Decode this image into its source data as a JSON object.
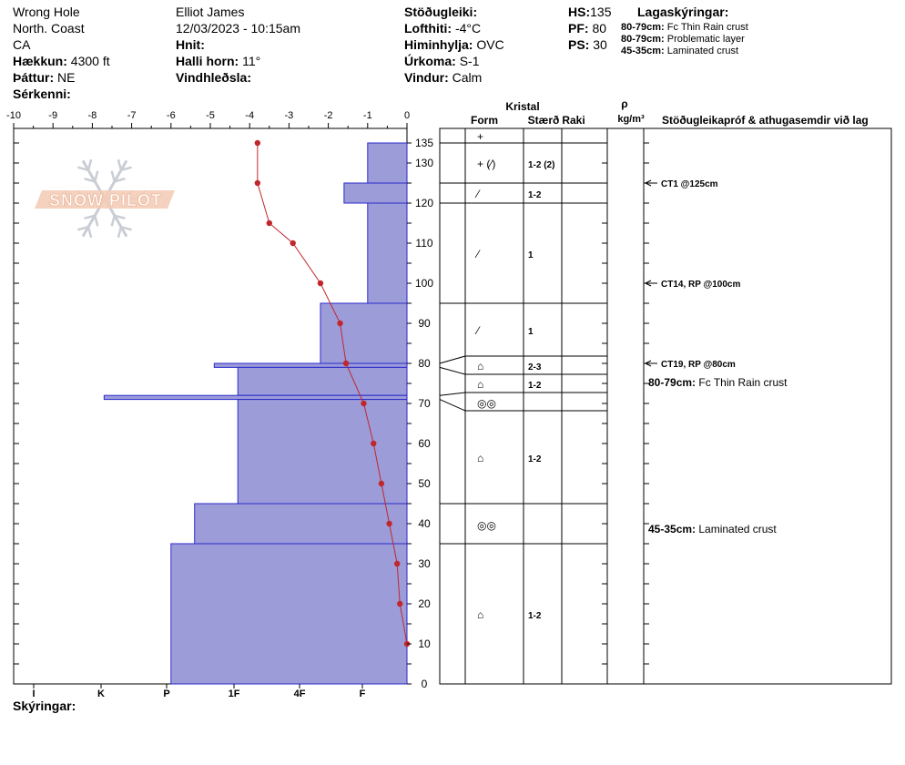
{
  "header": {
    "col1": [
      "Wrong Hole",
      "North. Coast",
      "CA"
    ],
    "elevation": {
      "label": "Hækkun:",
      "value": "4300 ft"
    },
    "aspect": {
      "label": "Þáttur:",
      "value": "NE"
    },
    "features": {
      "label": "Sérkenni:",
      "value": ""
    },
    "observer": "Elliot James",
    "datetime": "12/03/2023 - 10:15am",
    "coords": {
      "label": "Hnit:",
      "value": ""
    },
    "slope": {
      "label": "Halli horn:",
      "value": "11°"
    },
    "wind_loading": {
      "label": "Vindhleðsla:",
      "value": ""
    },
    "stability": {
      "label": "Stöðugleiki:",
      "value": ""
    },
    "air_temp": {
      "label": "Lofthiti:",
      "value": "-4°C"
    },
    "sky": {
      "label": "Himinhylja:",
      "value": "OVC"
    },
    "precip": {
      "label": "Úrkoma:",
      "value": "S-1"
    },
    "wind": {
      "label": "Vindur:",
      "value": "Calm"
    },
    "hs": {
      "label": "HS:",
      "value": "135"
    },
    "pf": {
      "label": "PF:",
      "value": "80"
    },
    "ps": {
      "label": "PS:",
      "value": "30"
    },
    "legend_title": "Lagaskýringar:",
    "legend_items": [
      {
        "range": "80-79cm:",
        "text": "Fc Thin Rain crust"
      },
      {
        "range": "80-79cm:",
        "text": "Problematic layer"
      },
      {
        "range": "45-35cm:",
        "text": "Laminated crust"
      }
    ],
    "notes_label": "Skýringar:"
  },
  "chart_data": {
    "type": "snow-profile",
    "temperature_axis": {
      "ticks": [
        -10,
        -9,
        -8,
        -7,
        -6,
        -5,
        -4,
        -3,
        -2,
        -1,
        0
      ],
      "range": [
        -10,
        0
      ]
    },
    "depth_axis": {
      "range": [
        0,
        135
      ],
      "labels": [
        0,
        10,
        20,
        30,
        40,
        50,
        60,
        70,
        80,
        90,
        100,
        110,
        120,
        130,
        135
      ]
    },
    "hardness_axis": {
      "labels": [
        "I",
        "K",
        "P",
        "1F",
        "4F",
        "F"
      ]
    },
    "temperature_profile": [
      {
        "depth": 135,
        "temp": -3.8
      },
      {
        "depth": 125,
        "temp": -3.8
      },
      {
        "depth": 115,
        "temp": -3.5
      },
      {
        "depth": 110,
        "temp": -2.9
      },
      {
        "depth": 100,
        "temp": -2.2
      },
      {
        "depth": 90,
        "temp": -1.7
      },
      {
        "depth": 80,
        "temp": -1.55
      },
      {
        "depth": 70,
        "temp": -1.1
      },
      {
        "depth": 60,
        "temp": -0.85
      },
      {
        "depth": 50,
        "temp": -0.65
      },
      {
        "depth": 40,
        "temp": -0.45
      },
      {
        "depth": 30,
        "temp": -0.25
      },
      {
        "depth": 20,
        "temp": -0.18
      },
      {
        "depth": 10,
        "temp": 0
      }
    ],
    "hardness_layers": [
      {
        "top": 135,
        "bottom": 125,
        "hardness": -1.0
      },
      {
        "top": 125,
        "bottom": 120,
        "hardness": -1.6
      },
      {
        "top": 120,
        "bottom": 95,
        "hardness": -1.0
      },
      {
        "top": 95,
        "bottom": 80,
        "hardness": -2.2
      },
      {
        "top": 80,
        "bottom": 79,
        "hardness": -4.9
      },
      {
        "top": 79,
        "bottom": 72,
        "hardness": -4.3
      },
      {
        "top": 72,
        "bottom": 71,
        "hardness": -7.7
      },
      {
        "top": 71,
        "bottom": 45,
        "hardness": -4.3
      },
      {
        "top": 45,
        "bottom": 35,
        "hardness": -5.4
      },
      {
        "top": 35,
        "bottom": 0,
        "hardness": -6.0
      }
    ],
    "crystal_header": {
      "kristal": "Kristal",
      "form": "Form",
      "size": "Stærð",
      "moisture": "Raki",
      "rho": "ρ",
      "density_unit": "kg/m³",
      "tests": "Stöðugleikapróf & athugasemdir við lag"
    },
    "layers": [
      {
        "top": 135,
        "bottom": 125,
        "form": "+",
        "size": ""
      },
      {
        "top": 135,
        "bottom": 125,
        "form": "+ (⁄)",
        "size": "1-2 (2)"
      },
      {
        "top": 125,
        "bottom": 120,
        "form": "⁄",
        "size": "1-2"
      },
      {
        "top": 120,
        "bottom": 95,
        "form": "⁄",
        "size": "1"
      },
      {
        "top": 95,
        "bottom": 80,
        "form": "⁄",
        "size": "1"
      },
      {
        "top": 80,
        "bottom": 79,
        "form": "⌂",
        "size": "2-3"
      },
      {
        "top": 79,
        "bottom": 72,
        "form": "⌂",
        "size": "1-2"
      },
      {
        "top": 72,
        "bottom": 71,
        "form": "◎◎",
        "size": ""
      },
      {
        "top": 71,
        "bottom": 45,
        "form": "⌂",
        "size": "1-2"
      },
      {
        "top": 45,
        "bottom": 35,
        "form": "◎◎",
        "size": ""
      },
      {
        "top": 35,
        "bottom": 0,
        "form": "⌂",
        "size": "1-2"
      }
    ],
    "tests": [
      {
        "depth": 125,
        "text": "CT1 @125cm"
      },
      {
        "depth": 100,
        "text": "CT14, RP @100cm"
      },
      {
        "depth": 80,
        "text": "CT19, RP @80cm"
      }
    ],
    "comments": [
      {
        "depth": 78,
        "range": "80-79cm:",
        "text": "Fc Thin Rain crust"
      },
      {
        "depth": 41,
        "range": "45-35cm:",
        "text": "Laminated crust"
      }
    ],
    "logo_text": "SNOW PILOT",
    "colors": {
      "hardness_fill": "#9c9cd9",
      "hardness_stroke": "#2a2acc",
      "temp_line": "#c0272d"
    }
  }
}
